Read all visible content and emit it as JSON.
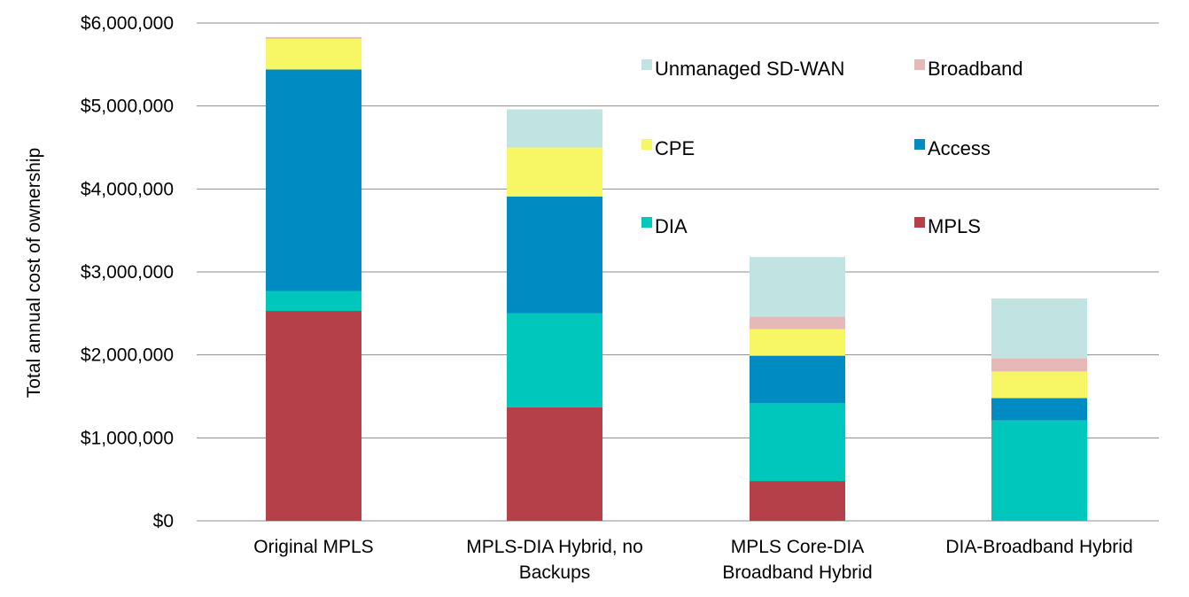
{
  "chart_data": {
    "type": "bar",
    "stacked": true,
    "title": "",
    "xlabel": "",
    "ylabel": "Total annual cost of ownership",
    "ylim": [
      0,
      6000000
    ],
    "yticks": [
      {
        "value": 0,
        "label": "$0"
      },
      {
        "value": 1000000,
        "label": "$1,000,000"
      },
      {
        "value": 2000000,
        "label": "$2,000,000"
      },
      {
        "value": 3000000,
        "label": "$3,000,000"
      },
      {
        "value": 4000000,
        "label": "$4,000,000"
      },
      {
        "value": 5000000,
        "label": "$5,000,000"
      },
      {
        "value": 6000000,
        "label": "$6,000,000"
      }
    ],
    "grid": true,
    "legend_position": "top-right",
    "categories": [
      [
        "Original MPLS"
      ],
      [
        "MPLS-DIA Hybrid, no",
        "Backups"
      ],
      [
        "MPLS Core-DIA",
        "Broadband Hybrid"
      ],
      [
        "DIA-Broadband Hybrid"
      ]
    ],
    "series": [
      {
        "name": "MPLS",
        "color": "#b5404a",
        "values": [
          2530000,
          1370000,
          480000,
          0
        ]
      },
      {
        "name": "DIA",
        "color": "#00c7bc",
        "values": [
          240000,
          1130000,
          940000,
          1210000
        ]
      },
      {
        "name": "Access",
        "color": "#008bc3",
        "values": [
          2670000,
          1410000,
          570000,
          270000
        ]
      },
      {
        "name": "CPE",
        "color": "#f7f765",
        "values": [
          370000,
          590000,
          320000,
          320000
        ]
      },
      {
        "name": "Broadband",
        "color": "#e6b8b8",
        "values": [
          20000,
          0,
          150000,
          160000
        ]
      },
      {
        "name": "Unmanaged SD-WAN",
        "color": "#c1e4e3",
        "values": [
          0,
          460000,
          720000,
          720000
        ]
      }
    ],
    "legend_order": [
      "Unmanaged SD-WAN",
      "Broadband",
      "CPE",
      "Access",
      "DIA",
      "MPLS"
    ]
  }
}
